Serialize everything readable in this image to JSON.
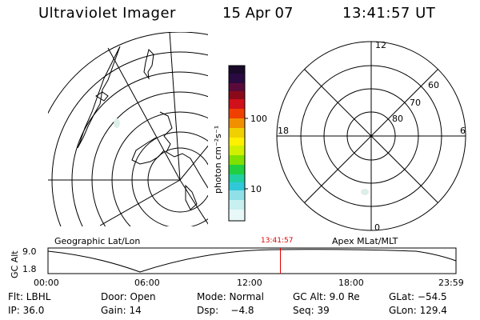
{
  "header": {
    "title": "Ultraviolet Imager",
    "date": "15 Apr 07",
    "time": "13:41:57 UT"
  },
  "colorbar": {
    "label": "photon cm⁻²s⁻¹",
    "ticks": [
      "100",
      "10"
    ]
  },
  "polar_plot": {
    "mlt_labels": [
      "12",
      "18",
      "6",
      "0"
    ],
    "lat_labels": [
      "60",
      "70",
      "80"
    ]
  },
  "timeline": {
    "left_label": "Geographic Lat/Lon",
    "right_label": "Apex MLat/MLT",
    "y_axis_label": "GC Alt",
    "y_ticks": [
      "9.0",
      "1.8"
    ],
    "x_ticks": [
      "00:00",
      "06:00",
      "12:00",
      "18:00",
      "23:59"
    ],
    "current_marker_time": "13:41:57"
  },
  "info": {
    "row1": [
      "Flt: LBHL",
      "Door: Open",
      "Mode: Normal",
      "GC Alt: 9.0 Re",
      "GLat: −54.5"
    ],
    "row2": [
      "IP: 36.0",
      "Gain: 14",
      "Dsp:    −4.8",
      "Seq: 39",
      "GLon: 129.4"
    ]
  }
}
